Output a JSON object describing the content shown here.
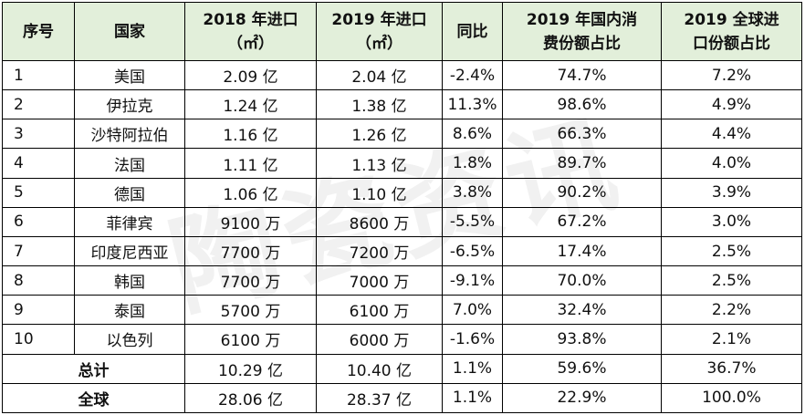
{
  "header": {
    "index": "序号",
    "country": "国家",
    "import_2018": {
      "line1": "2018 年进口",
      "line2": "（㎡）"
    },
    "import_2019": {
      "line1": "2019 年进口",
      "line2": "（㎡）"
    },
    "yoy": "同比",
    "domestic_share": {
      "line1": "2019 年国内消",
      "line2": "费份额占比"
    },
    "global_share": {
      "line1": "2019  全球进",
      "line2": "口份额占比"
    }
  },
  "rows": [
    {
      "index": "1",
      "country": "美国",
      "import_2018": "2.09 亿",
      "import_2019": "2.04 亿",
      "yoy": "-2.4%",
      "domestic_share": "74.7%",
      "global_share": "7.2%"
    },
    {
      "index": "2",
      "country": "伊拉克",
      "import_2018": "1.24 亿",
      "import_2019": "1.38 亿",
      "yoy": "11.3%",
      "domestic_share": "98.6%",
      "global_share": "4.9%"
    },
    {
      "index": "3",
      "country": "沙特阿拉伯",
      "import_2018": "1.16 亿",
      "import_2019": "1.26 亿",
      "yoy": "8.6%",
      "domestic_share": "66.3%",
      "global_share": "4.4%"
    },
    {
      "index": "4",
      "country": "法国",
      "import_2018": "1.11 亿",
      "import_2019": "1.13 亿",
      "yoy": "1.8%",
      "domestic_share": "89.7%",
      "global_share": "4.0%"
    },
    {
      "index": "5",
      "country": "德国",
      "import_2018": "1.06 亿",
      "import_2019": "1.10 亿",
      "yoy": "3.8%",
      "domestic_share": "90.2%",
      "global_share": "3.9%"
    },
    {
      "index": "6",
      "country": "菲律宾",
      "import_2018": "9100 万",
      "import_2019": "8600 万",
      "yoy": "-5.5%",
      "domestic_share": "67.2%",
      "global_share": "3.0%"
    },
    {
      "index": "7",
      "country": "印度尼西亚",
      "import_2018": "7700 万",
      "import_2019": "7200 万",
      "yoy": "-6.5%",
      "domestic_share": "17.4%",
      "global_share": "2.5%"
    },
    {
      "index": "8",
      "country": "韩国",
      "import_2018": "7700 万",
      "import_2019": "7000 万",
      "yoy": "-9.1%",
      "domestic_share": "70.0%",
      "global_share": "2.5%"
    },
    {
      "index": "9",
      "country": "泰国",
      "import_2018": "5700 万",
      "import_2019": "6100 万",
      "yoy": "7.0%",
      "domestic_share": "32.4%",
      "global_share": "2.2%"
    },
    {
      "index": "10",
      "country": "以色列",
      "import_2018": "6100 万",
      "import_2019": "6000 万",
      "yoy": "-1.6%",
      "domestic_share": "93.8%",
      "global_share": "2.1%"
    }
  ],
  "summary": [
    {
      "label": "总计",
      "import_2018": "10.29 亿",
      "import_2019": "10.40 亿",
      "yoy": "1.1%",
      "domestic_share": "59.6%",
      "global_share": "36.7%"
    },
    {
      "label": "全球",
      "import_2018": "28.06 亿",
      "import_2019": "28.37 亿",
      "yoy": "1.1%",
      "domestic_share": "22.9%",
      "global_share": "100.0%"
    }
  ],
  "watermark": "陶瓷资讯",
  "colors": {
    "header_bg": "#e2efda",
    "border": "#000000"
  }
}
